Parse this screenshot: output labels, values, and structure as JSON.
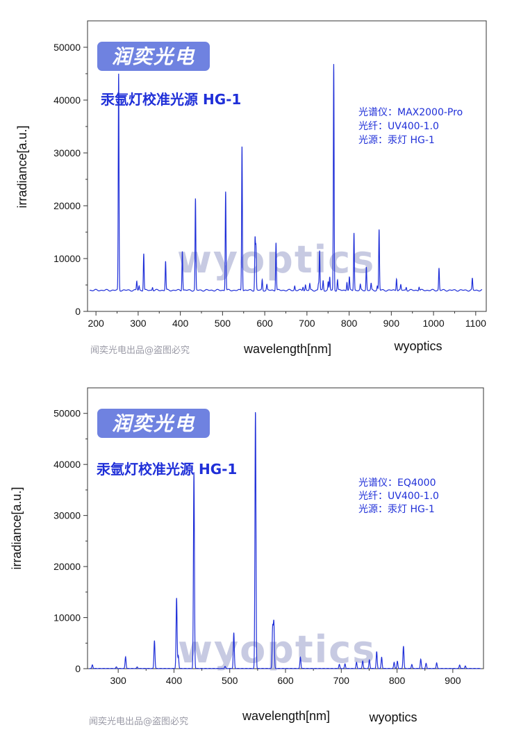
{
  "chart_data": [
    {
      "type": "line",
      "brand": "润奕光电",
      "title": "汞氩灯校准光源 HG-1",
      "info": [
        "光谱仪：MAX2000-Pro",
        "光纤：UV400-1.0",
        "光源：汞灯 HG-1"
      ],
      "xlabel": "wavelength[nm]",
      "ylabel": "irradiance[a.u.]",
      "watermark": "wyoptics",
      "bottom_label": "wyoptics",
      "credit": "闻奕光电出品@盗图必究",
      "xlim": [
        180,
        1125
      ],
      "ylim": [
        0,
        55000
      ],
      "xticks": [
        200,
        300,
        400,
        500,
        600,
        700,
        800,
        900,
        1000,
        1100
      ],
      "yticks": [
        0,
        10000,
        20000,
        30000,
        40000,
        50000
      ],
      "baseline": 4000,
      "x_range": [
        185,
        1115
      ],
      "grid": false,
      "series": [
        {
          "color": "#1f2fd8",
          "peaks": [
            [
              253.7,
              45000
            ],
            [
              296.7,
              5700
            ],
            [
              302.2,
              4800
            ],
            [
              313.2,
              11000
            ],
            [
              334.1,
              4600
            ],
            [
              365.0,
              9500
            ],
            [
              404.7,
              11500
            ],
            [
              435.8,
              21300
            ],
            [
              507.3,
              22800
            ],
            [
              546.1,
              31500
            ],
            [
              577.0,
              13600
            ],
            [
              579.1,
              12000
            ],
            [
              594.0,
              6000
            ],
            [
              605.0,
              5000
            ],
            [
              626.7,
              13100
            ],
            [
              671.0,
              4800
            ],
            [
              690.7,
              4700
            ],
            [
              696.5,
              5000
            ],
            [
              706.7,
              5200
            ],
            [
              727.3,
              5200
            ],
            [
              730.0,
              11500
            ],
            [
              738.4,
              5800
            ],
            [
              750.4,
              5500
            ],
            [
              754.0,
              6500
            ],
            [
              763.5,
              46800
            ],
            [
              772.4,
              6000
            ],
            [
              794.8,
              5600
            ],
            [
              800.6,
              6400
            ],
            [
              811.5,
              14900
            ],
            [
              826.5,
              5000
            ],
            [
              840.8,
              8400
            ],
            [
              852.1,
              5200
            ],
            [
              866.8,
              4800
            ],
            [
              871.0,
              15500
            ],
            [
              912.3,
              6300
            ],
            [
              922.4,
              5000
            ],
            [
              935.4,
              4600
            ],
            [
              965.8,
              4700
            ],
            [
              1013.0,
              8200
            ],
            [
              1092.0,
              6200
            ]
          ]
        }
      ]
    },
    {
      "type": "line",
      "brand": "润奕光电",
      "title": "汞氩灯校准光源 HG-1",
      "info": [
        "光谱仪：EQ4000",
        "光纤：UV400-1.0",
        "光源：汞灯 HG-1"
      ],
      "xlabel": "wavelength[nm]",
      "ylabel": "irradiance[a.u.]",
      "watermark": "wyoptics",
      "bottom_label": "wyoptics",
      "credit": "闻奕光电出品@盗图必究",
      "xlim": [
        245,
        955
      ],
      "ylim": [
        0,
        55000
      ],
      "xticks": [
        300,
        400,
        500,
        600,
        700,
        800,
        900
      ],
      "yticks": [
        0,
        10000,
        20000,
        30000,
        40000,
        50000
      ],
      "baseline": 0,
      "x_range": [
        248,
        950
      ],
      "grid": false,
      "series": [
        {
          "color": "#1f2fd8",
          "peaks": [
            [
              253.7,
              700
            ],
            [
              296.7,
              300
            ],
            [
              313.2,
              2300
            ],
            [
              334.1,
              300
            ],
            [
              365.0,
              5500
            ],
            [
              404.7,
              13800
            ],
            [
              407.8,
              2500
            ],
            [
              435.8,
              38500
            ],
            [
              491.6,
              400
            ],
            [
              507.3,
              7000
            ],
            [
              546.1,
              50500
            ],
            [
              577.0,
              8000
            ],
            [
              579.1,
              8900
            ],
            [
              626.7,
              2200
            ],
            [
              696.5,
              800
            ],
            [
              706.7,
              900
            ],
            [
              727.3,
              1200
            ],
            [
              738.4,
              1500
            ],
            [
              750.4,
              1700
            ],
            [
              763.5,
              3300
            ],
            [
              772.4,
              2200
            ],
            [
              794.8,
              1200
            ],
            [
              800.6,
              1400
            ],
            [
              811.5,
              4400
            ],
            [
              826.5,
              800
            ],
            [
              842.5,
              1800
            ],
            [
              852.1,
              1000
            ],
            [
              871.0,
              1100
            ],
            [
              912.3,
              700
            ],
            [
              922.4,
              500
            ]
          ]
        }
      ]
    }
  ]
}
